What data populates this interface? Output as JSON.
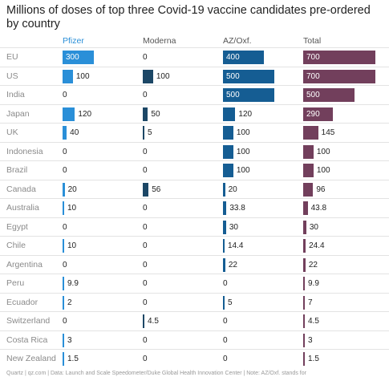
{
  "chart_data": {
    "type": "table",
    "title": "Millions of doses of top three Covid-19 vaccine candidates pre-ordered by country",
    "columns": [
      "Pfizer",
      "Moderna",
      "AZ/Oxf.",
      "Total"
    ],
    "colors": {
      "Pfizer": "#2a8fd8",
      "Moderna": "#1c4766",
      "AZ/Oxf.": "#155d93",
      "Total": "#723f5c"
    },
    "categories": [
      "EU",
      "US",
      "India",
      "Japan",
      "UK",
      "Indonesia",
      "Brazil",
      "Canada",
      "Australia",
      "Egypt",
      "Chile",
      "Argentina",
      "Peru",
      "Ecuador",
      "Switzerland",
      "Costa Rica",
      "New Zealand"
    ],
    "series": [
      {
        "name": "Pfizer",
        "values": [
          300,
          100,
          0,
          120,
          40,
          0,
          0,
          20,
          10,
          0,
          10,
          0,
          9.9,
          2,
          0,
          3,
          1.5
        ]
      },
      {
        "name": "Moderna",
        "values": [
          0,
          100,
          0,
          50,
          5,
          0,
          0,
          56,
          0,
          0,
          0,
          0,
          0,
          0,
          4.5,
          0,
          0
        ]
      },
      {
        "name": "AZ/Oxf.",
        "values": [
          400,
          500,
          500,
          120,
          100,
          100,
          100,
          20,
          33.8,
          30,
          14.4,
          22,
          0,
          5,
          0,
          0,
          0
        ]
      },
      {
        "name": "Total",
        "values": [
          700,
          700,
          500,
          290,
          145,
          100,
          100,
          96,
          43.8,
          30,
          24.4,
          22,
          9.9,
          7,
          4.5,
          3,
          1.5
        ]
      }
    ],
    "footer": "Quartz | qz.com | Data: Launch and Scale Speedometer/Duke Global Health Innovation Center | Note: AZ/Oxf. stands for"
  }
}
